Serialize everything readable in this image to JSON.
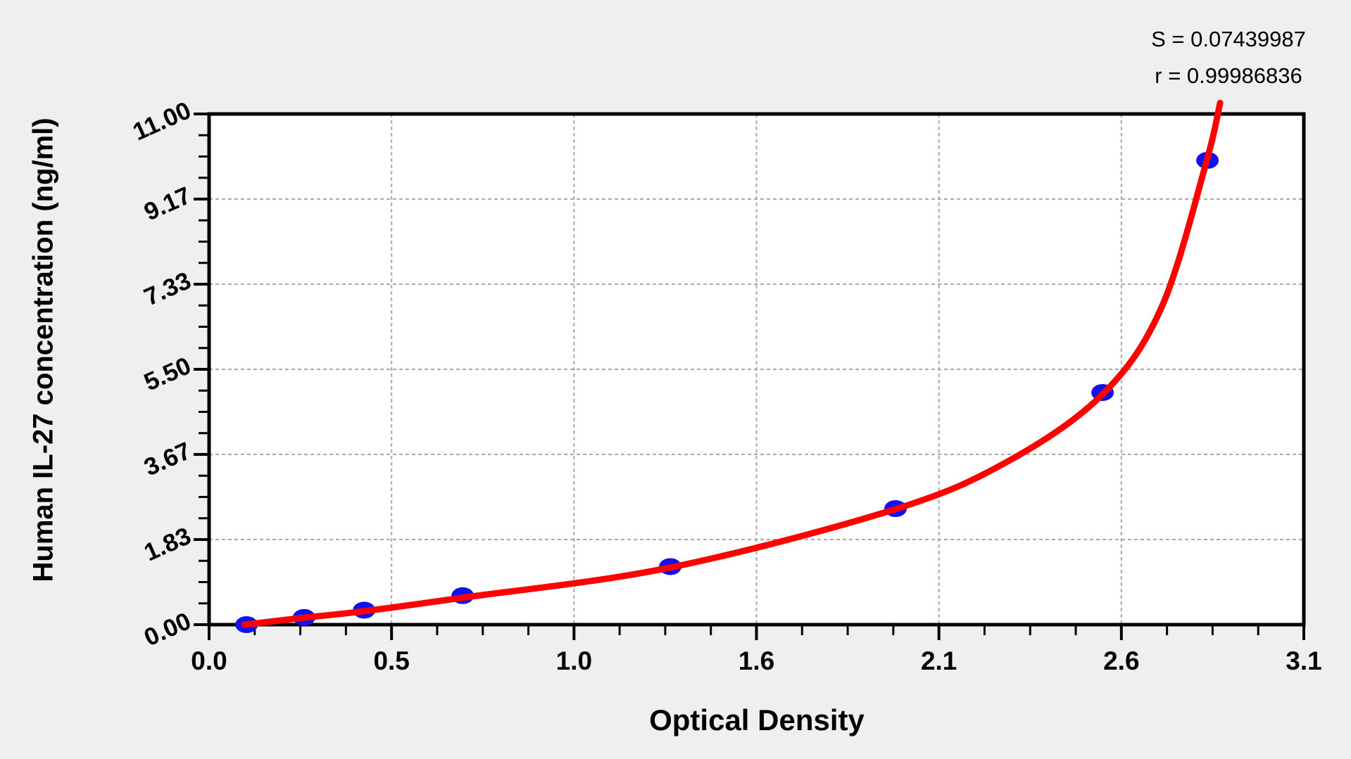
{
  "page": {
    "background": "#efefef"
  },
  "stats": {
    "s_line": "S = 0.07439987",
    "r_line": "r = 0.99986836"
  },
  "chart_data": {
    "type": "line",
    "title": "",
    "xlabel": "Optical Density",
    "ylabel": "Human IL-27 concentration (ng/ml)",
    "xlim": [
      0,
      3.1
    ],
    "ylim": [
      0,
      11
    ],
    "x_tick_labels": [
      "0.0",
      "0.5",
      "1.0",
      "1.6",
      "2.1",
      "2.6",
      "3.1"
    ],
    "y_tick_labels": [
      "0.00",
      "1.83",
      "3.67",
      "5.50",
      "7.33",
      "9.17",
      "11.00"
    ],
    "minor_divisions": 4,
    "grid": {
      "style": "dashed",
      "color": "#a9a9a9",
      "width": 2,
      "dash": "5 4",
      "on_major_ticks": true
    },
    "plot_background": "#ffffff",
    "frame_color": "#000000",
    "legend": "none",
    "stats": {
      "S": 0.07439987,
      "r": 0.99986836
    },
    "series": [
      {
        "name": "standard points",
        "type": "scatter",
        "marker": "ellipse",
        "marker_rx": 16,
        "marker_ry": 12,
        "color": "#1111ee",
        "points_od_conc": [
          [
            0.106,
            0
          ],
          [
            0.269,
            0.156
          ],
          [
            0.439,
            0.312
          ],
          [
            0.718,
            0.625
          ],
          [
            1.306,
            1.25
          ],
          [
            1.944,
            2.5
          ],
          [
            2.53,
            5
          ],
          [
            2.827,
            10
          ]
        ]
      },
      {
        "name": "fitted curve",
        "type": "line",
        "color": "#ff0000",
        "stroke_width": 9,
        "points_od_conc": [
          [
            0.1,
            0.0
          ],
          [
            0.269,
            0.15
          ],
          [
            0.439,
            0.29
          ],
          [
            0.718,
            0.58
          ],
          [
            1.306,
            1.23
          ],
          [
            1.944,
            2.49
          ],
          [
            2.265,
            3.53
          ],
          [
            2.53,
            4.96
          ],
          [
            2.697,
            6.83
          ],
          [
            2.823,
            9.94
          ],
          [
            2.863,
            11.24
          ]
        ]
      }
    ]
  }
}
